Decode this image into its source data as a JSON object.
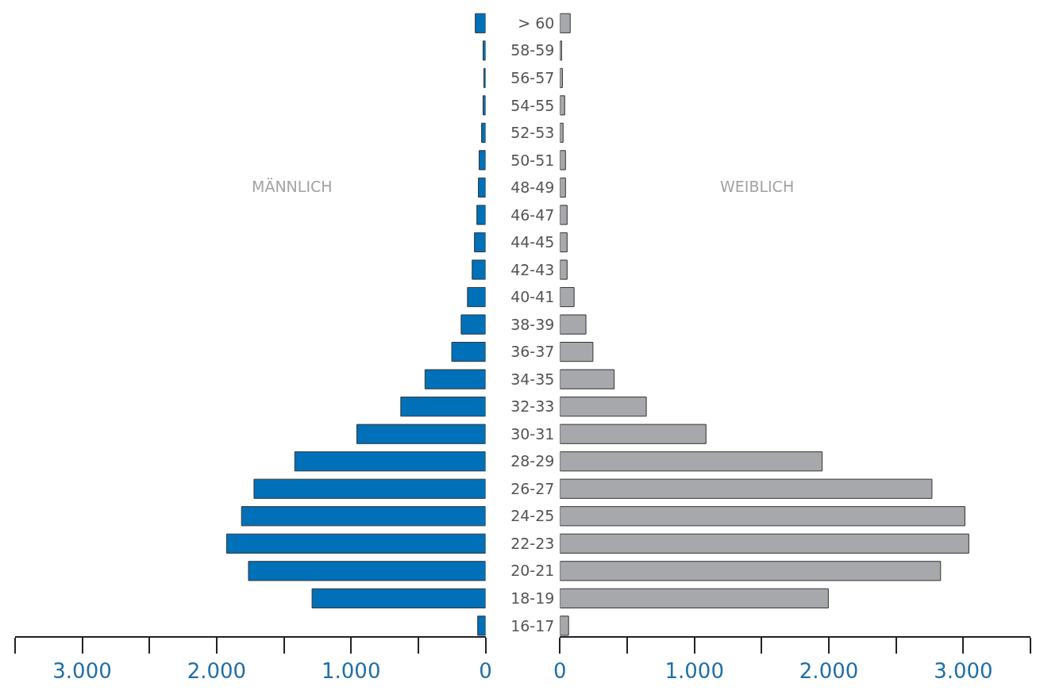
{
  "chart_data": [
    {
      "type": "bar",
      "orientation": "horizontal",
      "title": "MÄNNLICH",
      "tick_labels": "x",
      "categories": [
        "> 60",
        "58-59",
        "56-57",
        "54-55",
        "52-53",
        "50-51",
        "48-49",
        "46-47",
        "44-45",
        "42-43",
        "40-41",
        "38-39",
        "36-37",
        "34-35",
        "32-33",
        "30-31",
        "28-29",
        "26-27",
        "24-25",
        "22-23",
        "20-21",
        "18-19",
        "16-17"
      ],
      "values": [
        76,
        18,
        12,
        18,
        29,
        47,
        53,
        64,
        82,
        99,
        134,
        181,
        251,
        450,
        630,
        957,
        1419,
        1722,
        1815,
        1926,
        1763,
        1290,
        58
      ],
      "color": "#0070b8",
      "xlim": [
        3500,
        0
      ],
      "xticks": [
        {
          "value": 3000,
          "label": "3.000"
        },
        {
          "value": 2000,
          "label": "2.000"
        },
        {
          "value": 1000,
          "label": "1.000"
        },
        0
      ]
    },
    {
      "type": "bar",
      "orientation": "horizontal",
      "title": "WEIBLICH",
      "categories": [
        "> 60",
        "58-59",
        "56-57",
        "54-55",
        "52-53",
        "50-51",
        "48-49",
        "46-47",
        "44-45",
        "42-43",
        "40-41",
        "38-39",
        "36-37",
        "34-35",
        "32-33",
        "30-31",
        "28-29",
        "26-27",
        "24-25",
        "22-23",
        "20-21",
        "18-19",
        "16-17"
      ],
      "values": [
        76,
        12,
        18,
        35,
        23,
        41,
        41,
        53,
        53,
        53,
        105,
        193,
        245,
        403,
        642,
        1086,
        1950,
        2767,
        3012,
        3041,
        2831,
        1996,
        64
      ],
      "color": "#a6a8ab",
      "xlim": [
        0,
        3500
      ],
      "xticks": [
        0,
        {
          "value": 1000,
          "label": "1.000"
        },
        {
          "value": 2000,
          "label": "2.000"
        },
        {
          "value": 3000,
          "label": "3.000"
        }
      ]
    }
  ]
}
